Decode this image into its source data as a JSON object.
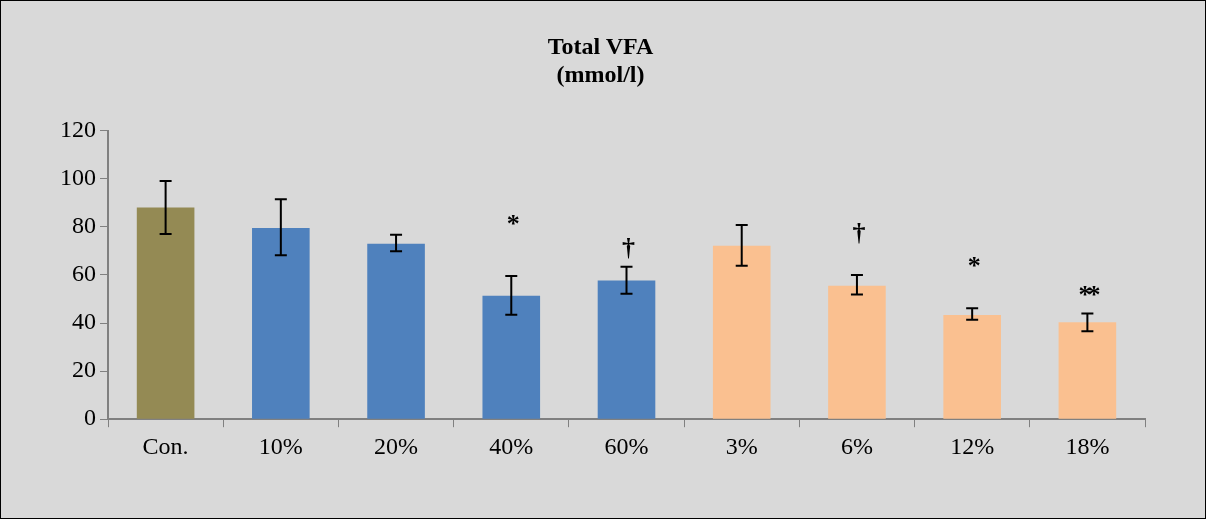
{
  "chart_data": {
    "type": "bar",
    "title": "Total VFA\n(mmol/l)",
    "categories": [
      "Con.",
      "10%",
      "20%",
      "40%",
      "60%",
      "3%",
      "6%",
      "12%",
      "18%"
    ],
    "values": [
      88,
      79.5,
      73,
      51.3,
      57.7,
      72.1,
      55.5,
      43.3,
      40.3
    ],
    "colors": [
      "#948a54",
      "#4f81bd",
      "#4f81bd",
      "#4f81bd",
      "#4f81bd",
      "#fac090",
      "#fac090",
      "#fac090",
      "#fac090"
    ],
    "errors": [
      [
        77,
        99
      ],
      [
        68.2,
        91.5
      ],
      [
        69.8,
        76.7
      ],
      [
        43.4,
        59.5
      ],
      [
        52.2,
        63.4
      ],
      [
        63.8,
        80.8
      ],
      [
        51.9,
        60
      ],
      [
        41.4,
        46.1
      ],
      [
        36.6,
        43.9
      ]
    ],
    "ylim": [
      0,
      120
    ],
    "yticks": [
      0,
      20,
      40,
      60,
      80,
      100,
      120
    ],
    "grid": false,
    "legend": false,
    "value_labels": [
      null,
      null,
      null,
      "*",
      "†",
      null,
      "†",
      "*",
      "**"
    ]
  }
}
